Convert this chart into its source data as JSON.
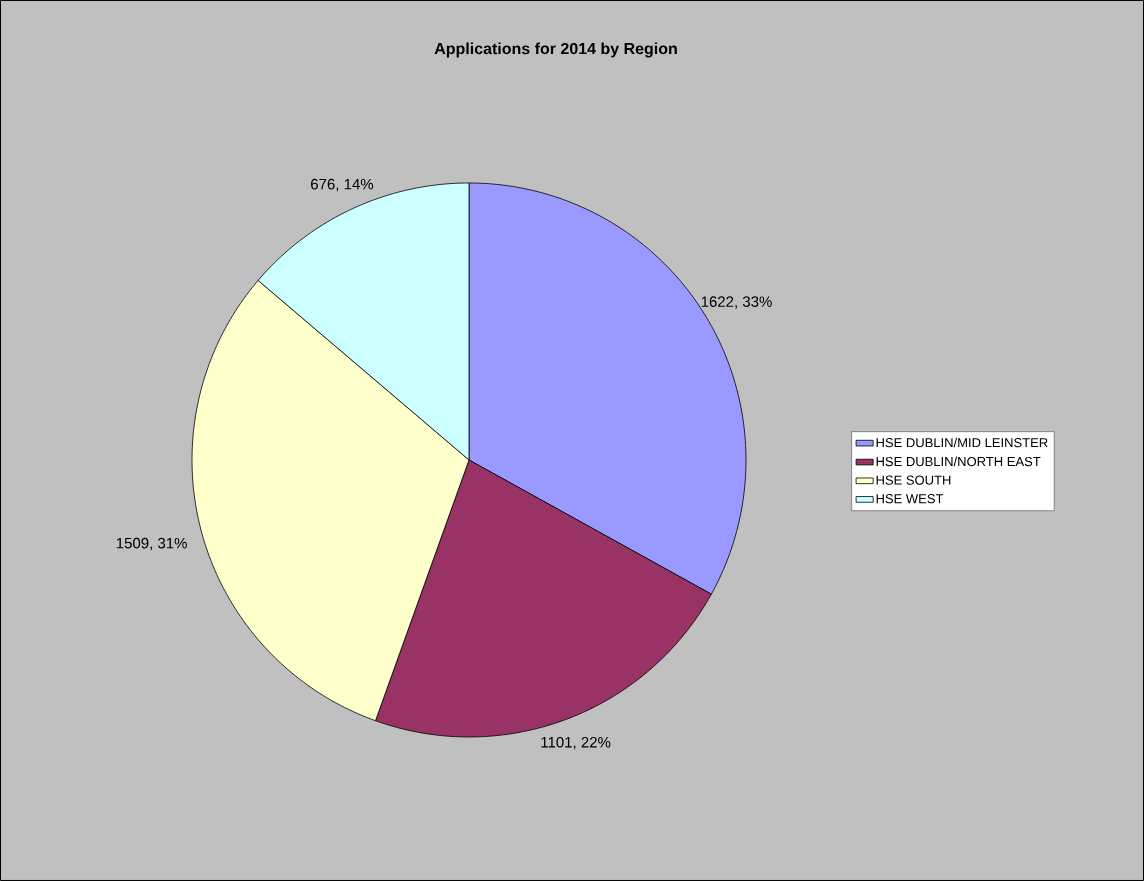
{
  "chart_data": {
    "type": "pie",
    "title": "Applications for 2014 by Region",
    "categories": [
      "HSE DUBLIN/MID LEINSTER",
      "HSE DUBLIN/NORTH EAST",
      "HSE SOUTH",
      "HSE WEST"
    ],
    "values": [
      1622,
      1101,
      1509,
      676
    ],
    "colors": [
      "#9999ff",
      "#993366",
      "#ffffcc",
      "#ccffff"
    ],
    "value_labels": [
      "1622, 33%",
      "1101, 22%",
      "1509, 31%",
      "676, 14%"
    ],
    "legend": "right"
  }
}
